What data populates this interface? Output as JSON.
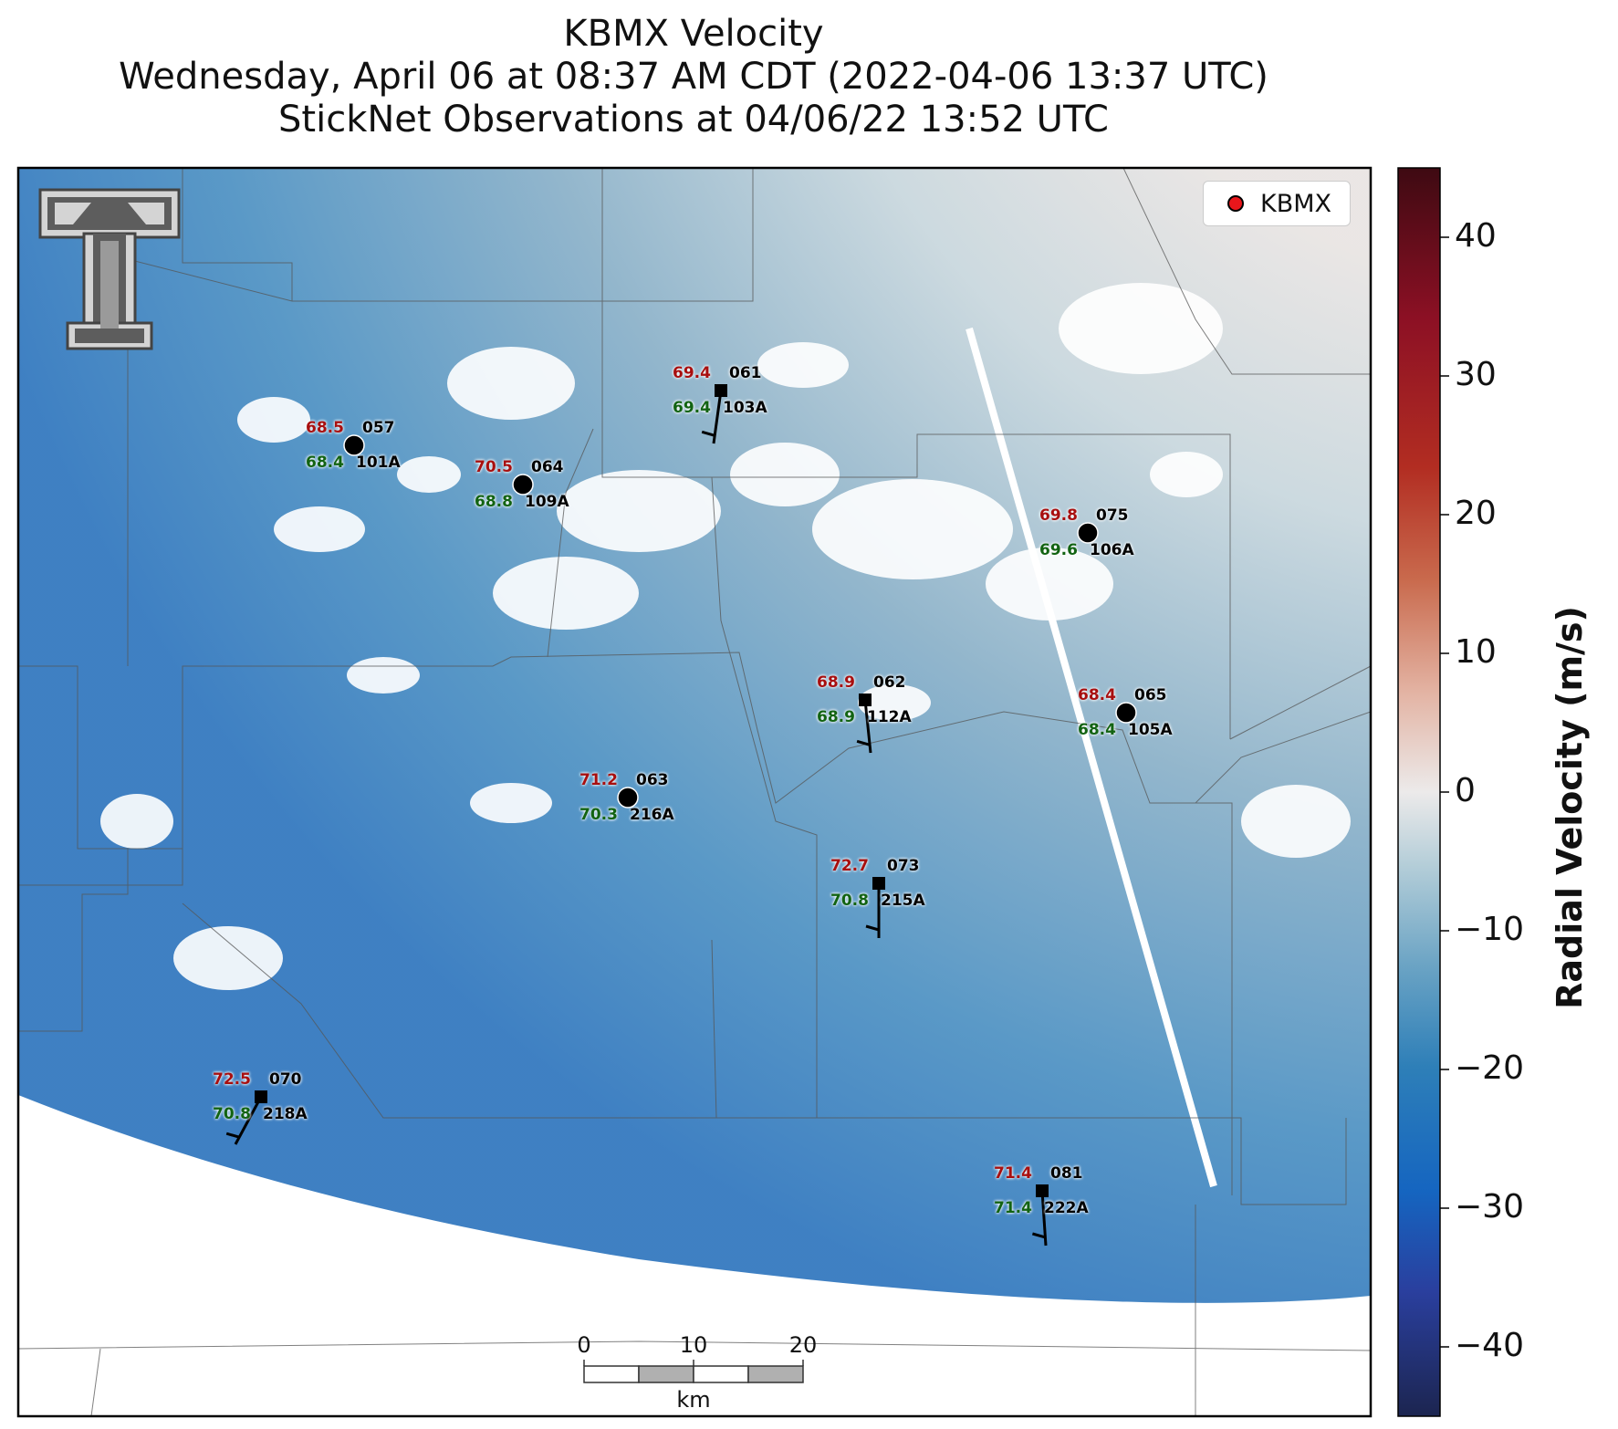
{
  "title": {
    "line1": "KBMX Velocity",
    "line2": "Wednesday, April 06 at 08:37 AM CDT (2022-04-06 13:37 UTC)",
    "line3": "StickNet Observations at 04/06/22 13:52 UTC"
  },
  "legend": {
    "label": "KBMX",
    "marker_color": "#e8161b"
  },
  "colorbar": {
    "label": "Radial Velocity (m/s)",
    "ticks": [
      "40",
      "30",
      "20",
      "10",
      "0",
      "−10",
      "−20",
      "−30",
      "−40"
    ],
    "range": [
      -45,
      45
    ],
    "colors": [
      "#1c2550",
      "#2a3f9e",
      "#1565c0",
      "#2e7fb8",
      "#6aa3c4",
      "#b3cdd8",
      "#eceaea",
      "#e3b3a3",
      "#c96a4d",
      "#b22d22",
      "#8c1024",
      "#3e0a12"
    ]
  },
  "scalebar": {
    "ticks": [
      "0",
      "10",
      "20"
    ],
    "unit": "km"
  },
  "stations": [
    {
      "id": "057",
      "obs": "101A",
      "temp": "68.5",
      "dew": "68.4",
      "marker": "circle"
    },
    {
      "id": "064",
      "obs": "109A",
      "temp": "70.5",
      "dew": "68.8",
      "marker": "circle"
    },
    {
      "id": "061",
      "obs": "103A",
      "temp": "69.4",
      "dew": "69.4",
      "marker": "square"
    },
    {
      "id": "075",
      "obs": "106A",
      "temp": "69.8",
      "dew": "69.6",
      "marker": "circle"
    },
    {
      "id": "062",
      "obs": "112A",
      "temp": "68.9",
      "dew": "68.9",
      "marker": "square"
    },
    {
      "id": "065",
      "obs": "105A",
      "temp": "68.4",
      "dew": "68.4",
      "marker": "circle"
    },
    {
      "id": "063",
      "obs": "216A",
      "temp": "71.2",
      "dew": "70.3",
      "marker": "circle"
    },
    {
      "id": "073",
      "obs": "215A",
      "temp": "72.7",
      "dew": "70.8",
      "marker": "square"
    },
    {
      "id": "070",
      "obs": "218A",
      "temp": "72.5",
      "dew": "70.8",
      "marker": "square"
    },
    {
      "id": "081",
      "obs": "222A",
      "temp": "71.4",
      "dew": "71.4",
      "marker": "square"
    }
  ]
}
